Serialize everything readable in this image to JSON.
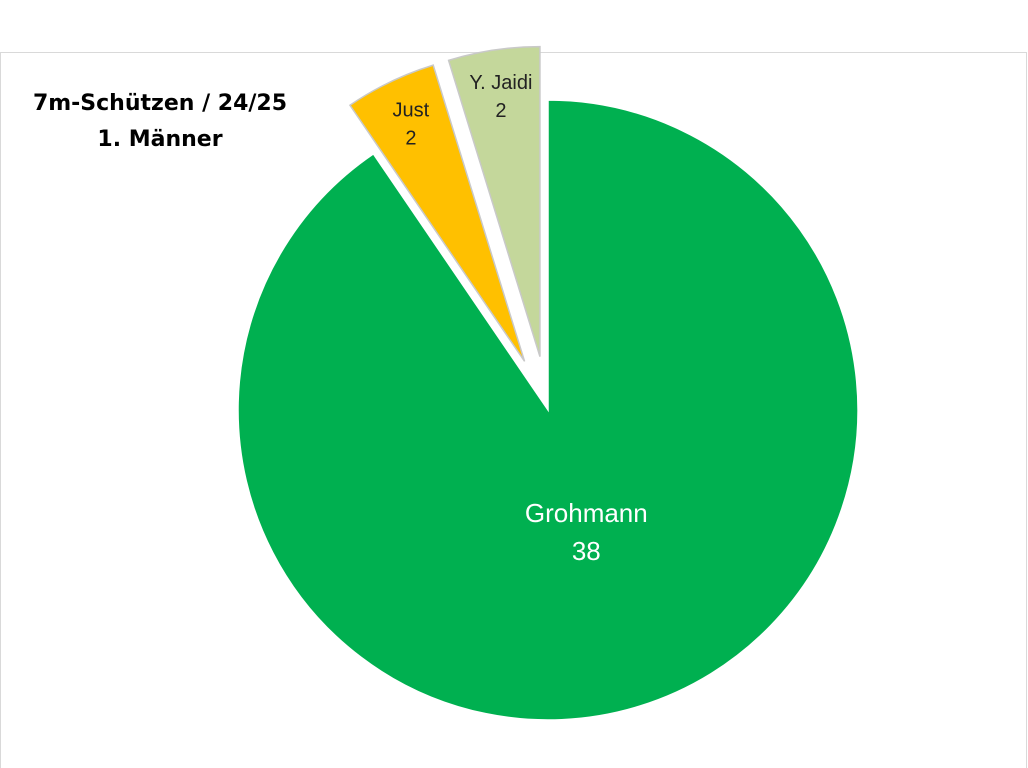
{
  "chart_data": {
    "type": "pie",
    "title": "7m-Schützen / 24/25",
    "subtitle": "1. Männer",
    "categories": [
      "Grohmann",
      "Just",
      "Y. Jaidi"
    ],
    "values": [
      38,
      2,
      2
    ],
    "colors": [
      "#00b050",
      "#ffc000",
      "#c4d79b"
    ]
  }
}
